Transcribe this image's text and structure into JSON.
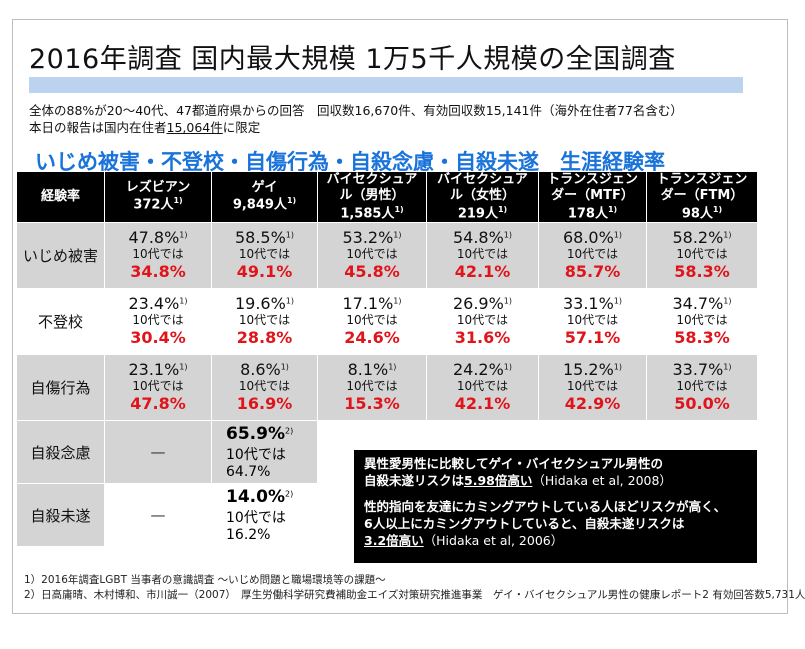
{
  "title": "2016年調査 国内最大規模 1万5千人規模の全国調査",
  "info_line1": "全体の88%が20～40代、47都道府県からの回答　回収数16,670件、有効回収数15,141件（海外在住者77名含む）",
  "info_line2_pre": "本日の報告は国内在住者",
  "info_line2_u": "15,064件",
  "info_line2_post": "に限定",
  "headline": "いじめ被害・不登校・自傷行為・自殺念慮・自殺未遂　生涯経験率",
  "table": {
    "corner": "経験率",
    "sup": "1)",
    "columns": [
      {
        "l1": "レズビアン",
        "l2": "372人"
      },
      {
        "l1": "ゲイ",
        "l2": "9,849人"
      },
      {
        "l1": "バイセクシュア",
        "l2": "ル（男性）",
        "l3": "1,585人"
      },
      {
        "l1": "バイセクシュア",
        "l2": "ル（女性）",
        "l3": "219人"
      },
      {
        "l1": "トランスジェン",
        "l2": "ダー（MTF）",
        "l3": "178人"
      },
      {
        "l1": "トランスジェン",
        "l2": "ダー（FTM）",
        "l3": "98人"
      }
    ],
    "teen_label": "10代では",
    "rows": [
      {
        "label": "いじめ被害",
        "cells": [
          {
            "v": "47.8%",
            "t": "34.8%"
          },
          {
            "v": "58.5%",
            "t": "49.1%"
          },
          {
            "v": "53.2%",
            "t": "45.8%"
          },
          {
            "v": "54.8%",
            "t": "42.1%"
          },
          {
            "v": "68.0%",
            "t": "85.7%"
          },
          {
            "v": "58.2%",
            "t": "58.3%"
          }
        ]
      },
      {
        "label": "不登校",
        "cells": [
          {
            "v": "23.4%",
            "t": "30.4%"
          },
          {
            "v": "19.6%",
            "t": "28.8%"
          },
          {
            "v": "17.1%",
            "t": "24.6%"
          },
          {
            "v": "26.9%",
            "t": "31.6%"
          },
          {
            "v": "33.1%",
            "t": "57.1%"
          },
          {
            "v": "34.7%",
            "t": "58.3%"
          }
        ]
      },
      {
        "label": "自傷行為",
        "cells": [
          {
            "v": "23.1%",
            "t": "47.8%"
          },
          {
            "v": "8.6%",
            "t": "16.9%"
          },
          {
            "v": "8.1%",
            "t": "15.3%"
          },
          {
            "v": "24.2%",
            "t": "42.1%"
          },
          {
            "v": "15.2%",
            "t": "42.9%"
          },
          {
            "v": "33.7%",
            "t": "50.0%"
          }
        ]
      }
    ],
    "suicide_rows": [
      {
        "label": "自殺念慮",
        "dash": "—",
        "v": "65.9%",
        "sup": "2)",
        "teen": "10代では64.7%"
      },
      {
        "label": "自殺未遂",
        "dash": "—",
        "v": "14.0%",
        "sup": "2)",
        "teen": "10代では16.2%"
      }
    ]
  },
  "notebox": {
    "p1_l1": "異性愛男性に比較してゲイ・バイセクシュアル男性の",
    "p1_l2_pre": "自殺未遂リスクは",
    "p1_l2_u": "5.98倍高い",
    "p1_l2_post": "（Hidaka et al, 2008）",
    "p2_l1": "性的指向を友達にカミングアウトしている人ほどリスクが高く、",
    "p2_l2": "6人以上にカミングアウトしていると、自殺未遂リスクは",
    "p2_l3_u": "3.2倍高い",
    "p2_l3_post": "（Hidaka et al, 2006）"
  },
  "footnotes": [
    "1）2016年調査LGBT 当事者の意識調査 ～いじめ問題と職場環境等の課題～",
    "2）日高庸晴、木村博和、市川誠一（2007）　厚生労働科学研究費補助金エイズ対策研究推進事業　ゲイ・バイセクシュアル男性の健康レポート2 有効回答数5,731人"
  ]
}
